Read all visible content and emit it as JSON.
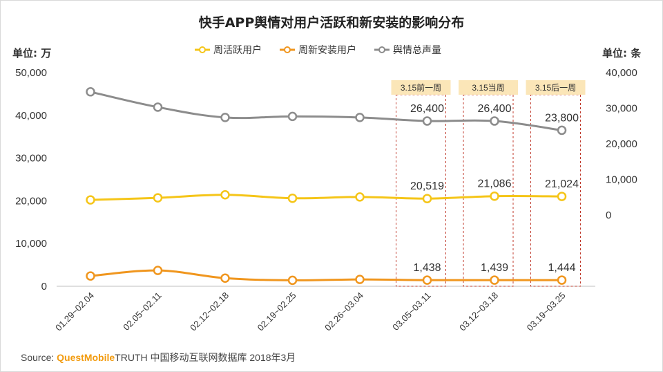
{
  "chart_data": {
    "type": "line",
    "title": "快手APP舆情对用户活跃和新安装的影响分布",
    "y_left_unit": "单位: 万",
    "y_right_unit": "单位: 条",
    "ylim_left": [
      0,
      50000
    ],
    "ylim_right": [
      0,
      40000
    ],
    "yticks_left": [
      "0",
      "10,000",
      "20,000",
      "30,000",
      "40,000",
      "50,000"
    ],
    "yticks_right": [
      "0",
      "10,000",
      "20,000",
      "30,000",
      "40,000"
    ],
    "categories": [
      "01.29~02.04",
      "02.05~02.11",
      "02.12~02.18",
      "02.19~02.25",
      "02.26~03.04",
      "03.05~03.11",
      "03.12~03.18",
      "03.19~03.25"
    ],
    "legend_position": "top-center",
    "series": [
      {
        "name": "周活跃用户",
        "axis": "left",
        "color": "#f5c518",
        "values": [
          20200,
          20700,
          21400,
          20600,
          20900,
          20519,
          21086,
          21024
        ],
        "labels": [
          "",
          "",
          "",
          "",
          "",
          "20,519",
          "21,086",
          "21,024"
        ]
      },
      {
        "name": "周新安装用户",
        "axis": "left",
        "color": "#f0961e",
        "values": [
          2400,
          3700,
          1900,
          1400,
          1600,
          1438,
          1439,
          1444
        ],
        "labels": [
          "",
          "",
          "",
          "",
          "",
          "1,438",
          "1,439",
          "1,444"
        ]
      },
      {
        "name": "舆情总声量",
        "axis": "right",
        "color": "#8c8c8c",
        "values": [
          34600,
          30300,
          27400,
          27700,
          27400,
          26400,
          26400,
          23800
        ],
        "labels": [
          "",
          "",
          "",
          "",
          "",
          "26,400",
          "26,400",
          "23,800"
        ]
      }
    ],
    "highlights": [
      {
        "index": 5,
        "label": "3.15前一周"
      },
      {
        "index": 6,
        "label": "3.15当周"
      },
      {
        "index": 7,
        "label": "3.15后一周"
      }
    ]
  },
  "source": {
    "prefix": "Source:",
    "brand": "QuestMobile",
    "rest": "TRUTH 中国移动互联网数据库 2018年3月"
  }
}
